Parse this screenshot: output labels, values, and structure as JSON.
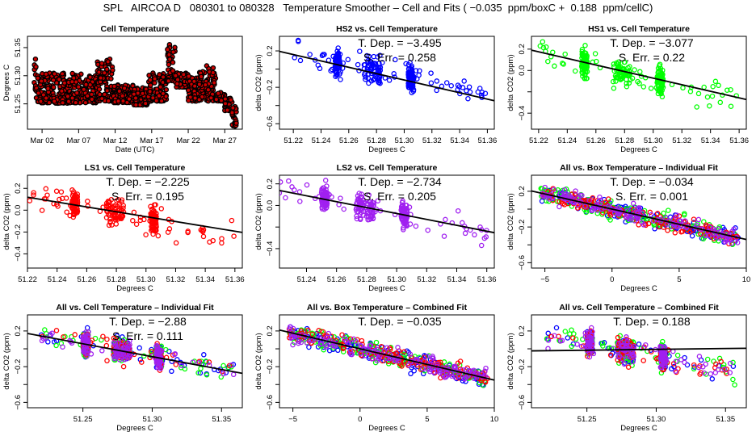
{
  "figure": {
    "title": "SPL   AIRCOA D   080301 to 080328   Temperature Smoother – Cell and Fits ( −0.035  ppm/boxC +  0.188  ppm/cellC)"
  },
  "colors": {
    "HS2": "#0000ff",
    "HS1": "#00ff00",
    "LS1": "#ff0000",
    "LS2": "#a020f0",
    "cell_temp_fill": "#cc0000",
    "cell_temp_edge": "#000000",
    "fit_line": "#000000"
  },
  "chart_data": [
    {
      "id": "cell-temperature",
      "type": "scatter",
      "title": "Cell Temperature",
      "xlabel": "Date (UTC)",
      "ylabel": "Degrees C",
      "xlim_days": [
        0.0,
        29.4
      ],
      "x_ticks": [
        {
          "label": "Mar 02",
          "day": 2
        },
        {
          "label": "Mar 07",
          "day": 7
        },
        {
          "label": "Mar 12",
          "day": 12
        },
        {
          "label": "Mar 17",
          "day": 17
        },
        {
          "label": "Mar 22",
          "day": 22
        },
        {
          "label": "Mar 27",
          "day": 27
        }
      ],
      "ylim": [
        51.205,
        51.37
      ],
      "y_ticks": [
        51.25,
        51.3,
        51.35
      ],
      "y_tick_labels": [
        "51.25",
        "51.30",
        "51.35"
      ],
      "segments": [
        {
          "start": 0.9,
          "end": 1.2,
          "low": 51.27,
          "high": 51.33
        },
        {
          "start": 1.2,
          "end": 3.5,
          "low": 51.252,
          "high": 51.305
        },
        {
          "start": 3.5,
          "end": 5.5,
          "low": 51.251,
          "high": 51.305
        },
        {
          "start": 5.5,
          "end": 7.5,
          "low": 51.252,
          "high": 51.306
        },
        {
          "start": 7.5,
          "end": 9.5,
          "low": 51.252,
          "high": 51.3
        },
        {
          "start": 9.5,
          "end": 11.8,
          "low": 51.255,
          "high": 51.335
        },
        {
          "start": 11.8,
          "end": 14.5,
          "low": 51.252,
          "high": 51.285
        },
        {
          "start": 14.5,
          "end": 16.5,
          "low": 51.248,
          "high": 51.28
        },
        {
          "start": 16.5,
          "end": 19.0,
          "low": 51.255,
          "high": 51.305
        },
        {
          "start": 19.0,
          "end": 20.2,
          "low": 51.29,
          "high": 51.365
        },
        {
          "start": 20.2,
          "end": 22.0,
          "low": 51.28,
          "high": 51.305
        },
        {
          "start": 22.0,
          "end": 23.5,
          "low": 51.255,
          "high": 51.3
        },
        {
          "start": 23.5,
          "end": 25.8,
          "low": 51.255,
          "high": 51.318
        },
        {
          "start": 25.8,
          "end": 27.0,
          "low": 51.255,
          "high": 51.27
        },
        {
          "start": 27.0,
          "end": 28.0,
          "low": 51.238,
          "high": 51.26
        },
        {
          "start": 28.0,
          "end": 28.6,
          "low": 51.21,
          "high": 51.245
        }
      ]
    },
    {
      "id": "hs2-vs-cell",
      "type": "scatter",
      "title": "HS2 vs. Cell Temperature",
      "xlabel": "Degrees C",
      "ylabel": "delta CO2 (ppm)",
      "xlim": [
        51.21,
        51.365
      ],
      "ylim": [
        -0.66,
        0.36
      ],
      "x_ticks": [
        51.22,
        51.24,
        51.26,
        51.28,
        51.3,
        51.32,
        51.34,
        51.36
      ],
      "x_tick_labels": [
        "51.22",
        "51.24",
        "51.26",
        "51.28",
        "51.30",
        "51.32",
        "51.34",
        "51.36"
      ],
      "y_ticks": [
        -0.6,
        -0.4,
        -0.2,
        0.0,
        0.2
      ],
      "y_tick_labels": [
        "−0.6",
        "",
        "−0.2",
        "",
        "0.2"
      ],
      "series": [
        "HS2"
      ],
      "fit": {
        "slope": -3.495,
        "intercept_at_51_28": -0.05
      },
      "annotations": [
        "T. Dep. =  −3.495",
        "S. Err. =  0.258"
      ],
      "clusters": [
        51.252,
        51.277,
        51.305
      ],
      "scatter_sd": 0.12
    },
    {
      "id": "hs1-vs-cell",
      "type": "scatter",
      "title": "HS1 vs. Cell Temperature",
      "xlabel": "Degrees C",
      "ylabel": "delta CO2 (ppm)",
      "xlim": [
        51.215,
        51.365
      ],
      "ylim": [
        -0.55,
        0.32
      ],
      "x_ticks": [
        51.22,
        51.24,
        51.26,
        51.28,
        51.3,
        51.32,
        51.34,
        51.36
      ],
      "x_tick_labels": [
        "51.22",
        "51.24",
        "51.26",
        "51.28",
        "51.30",
        "51.32",
        "51.34",
        "51.36"
      ],
      "y_ticks": [
        -0.4,
        -0.2,
        0.0,
        0.2
      ],
      "y_tick_labels": [
        "−0.4",
        "",
        "0.0",
        "0.2"
      ],
      "series": [
        "HS1"
      ],
      "fit": {
        "slope": -3.077,
        "intercept_at_51_28": -0.01
      },
      "annotations": [
        "T. Dep. =  −3.077",
        "S. Err. =  0.22"
      ],
      "clusters": [
        51.252,
        51.278,
        51.305
      ],
      "scatter_sd": 0.11
    },
    {
      "id": "ls1-vs-cell",
      "type": "scatter",
      "title": "LS1 vs. Cell Temperature",
      "xlabel": "Degrees C",
      "ylabel": "delta CO2 (ppm)",
      "xlim": [
        51.22,
        51.365
      ],
      "ylim": [
        -0.53,
        0.32
      ],
      "x_ticks": [
        51.22,
        51.24,
        51.26,
        51.28,
        51.3,
        51.32,
        51.34,
        51.36
      ],
      "x_tick_labels": [
        "51.22",
        "51.24",
        "51.26",
        "51.28",
        "51.30",
        "51.32",
        "51.34",
        "51.36"
      ],
      "y_ticks": [
        -0.4,
        -0.2,
        0.0,
        0.2
      ],
      "y_tick_labels": [
        "−0.4",
        "−0.2",
        "0.0",
        "0.2"
      ],
      "series": [
        "LS1"
      ],
      "fit": {
        "slope": -2.225,
        "intercept_at_51_28": -0.015
      },
      "annotations": [
        "T. Dep. =  −2.225",
        "S. Err. =  0.195"
      ],
      "clusters": [
        51.252,
        51.279,
        51.305
      ],
      "scatter_sd": 0.1
    },
    {
      "id": "ls2-vs-cell",
      "type": "scatter",
      "title": "LS2 vs. Cell Temperature",
      "xlabel": "Degrees C",
      "ylabel": "delta CO2 (ppm)",
      "xlim": [
        51.222,
        51.365
      ],
      "ylim": [
        -0.58,
        0.28
      ],
      "x_ticks": [
        51.24,
        51.26,
        51.28,
        51.3,
        51.32,
        51.34,
        51.36
      ],
      "x_tick_labels": [
        "51.24",
        "51.26",
        "51.28",
        "51.30",
        "51.32",
        "51.34",
        "51.36"
      ],
      "y_ticks": [
        -0.4,
        -0.2,
        0.0,
        0.2
      ],
      "y_tick_labels": [
        "−0.4",
        "",
        "0.0",
        "0.2"
      ],
      "series": [
        "LS2"
      ],
      "fit": {
        "slope": -2.734,
        "intercept_at_51_28": -0.02
      },
      "annotations": [
        "T. Dep. =  −2.734",
        "S. Err. =  0.205"
      ],
      "clusters": [
        51.252,
        51.279,
        51.305
      ],
      "scatter_sd": 0.1
    },
    {
      "id": "all-vs-box-individual",
      "type": "scatter",
      "title": "All vs. Box Temperature – Individual Fit",
      "xlabel": "Degrees C",
      "ylabel": "delta CO2 (ppm)",
      "xlim": [
        -6.0,
        10.0
      ],
      "ylim": [
        -0.66,
        0.38
      ],
      "x_ticks": [
        -5,
        0,
        5,
        10
      ],
      "x_tick_labels": [
        "−5",
        "0",
        "5",
        "10"
      ],
      "y_ticks": [
        -0.6,
        -0.4,
        -0.2,
        0.0,
        0.2
      ],
      "y_tick_labels": [
        "−0.6",
        "",
        "−0.2",
        "",
        "0.2"
      ],
      "series": [
        "HS2",
        "HS1",
        "LS1",
        "LS2"
      ],
      "fit": {
        "slope": -0.034,
        "intercept": 0.0
      },
      "annotations": [
        "T. Dep. =  −0.034",
        "S. Err. =  0.001"
      ],
      "box_range": [
        -5.3,
        9.5
      ],
      "scatter_sd": 0.08
    },
    {
      "id": "all-vs-cell-individual",
      "type": "scatter",
      "title": "All vs. Cell Temperature – Individual Fit",
      "xlabel": "Degrees C",
      "ylabel": "delta CO2 (ppm)",
      "xlim": [
        51.21,
        51.365
      ],
      "ylim": [
        -0.66,
        0.38
      ],
      "x_ticks": [
        51.25,
        51.3,
        51.35
      ],
      "x_tick_labels": [
        "51.25",
        "51.30",
        "51.35"
      ],
      "y_ticks": [
        -0.6,
        -0.4,
        -0.2,
        0.0,
        0.2
      ],
      "y_tick_labels": [
        "−0.6",
        "",
        "−0.2",
        "",
        "0.2"
      ],
      "series": [
        "HS2",
        "HS1",
        "LS1",
        "LS2"
      ],
      "fit": {
        "slope": -2.88,
        "intercept_at_51_28": -0.03
      },
      "annotations": [
        "T. Dep. =  −2.88",
        "S. Err. =  0.111"
      ],
      "clusters": [
        51.252,
        51.278,
        51.305
      ],
      "scatter_sd": 0.11
    },
    {
      "id": "all-vs-box-combined",
      "type": "scatter",
      "title": "All vs. Box Temperature – Combined Fit",
      "xlabel": "Degrees C",
      "ylabel": "delta CO2 (ppm)",
      "xlim": [
        -6.0,
        10.0
      ],
      "ylim": [
        -0.66,
        0.38
      ],
      "x_ticks": [
        -5,
        0,
        5,
        10
      ],
      "x_tick_labels": [
        "−5",
        "0",
        "5",
        "10"
      ],
      "y_ticks": [
        -0.6,
        -0.4,
        -0.2,
        0.0,
        0.2
      ],
      "y_tick_labels": [
        "−0.6",
        "",
        "−0.2",
        "",
        "0.2"
      ],
      "series": [
        "HS2",
        "HS1",
        "LS1",
        "LS2"
      ],
      "fit": {
        "slope": -0.035,
        "intercept": 0.0
      },
      "annotations": [
        "T. Dep. =  −0.035"
      ],
      "box_range": [
        -5.3,
        9.5
      ],
      "scatter_sd": 0.08
    },
    {
      "id": "all-vs-cell-combined",
      "type": "scatter",
      "title": "All vs. Cell Temperature – Combined Fit",
      "xlabel": "Degrees C",
      "ylabel": "delta CO2 (ppm)",
      "xlim": [
        51.21,
        51.365
      ],
      "ylim": [
        -0.66,
        0.38
      ],
      "x_ticks": [
        51.25,
        51.3,
        51.35
      ],
      "x_tick_labels": [
        "51.25",
        "51.30",
        "51.35"
      ],
      "y_ticks": [
        -0.6,
        -0.4,
        -0.2,
        0.0,
        0.2
      ],
      "y_tick_labels": [
        "−0.6",
        "",
        "−0.2",
        "",
        "0.2"
      ],
      "series": [
        "HS2",
        "HS1",
        "LS1",
        "LS2"
      ],
      "fit": {
        "slope": 0.188,
        "intercept_at_51_28": -0.01
      },
      "annotations": [
        "T. Dep. =  0.188"
      ],
      "clusters": [
        51.252,
        51.278,
        51.305
      ],
      "scatter_sd": 0.11
    }
  ]
}
